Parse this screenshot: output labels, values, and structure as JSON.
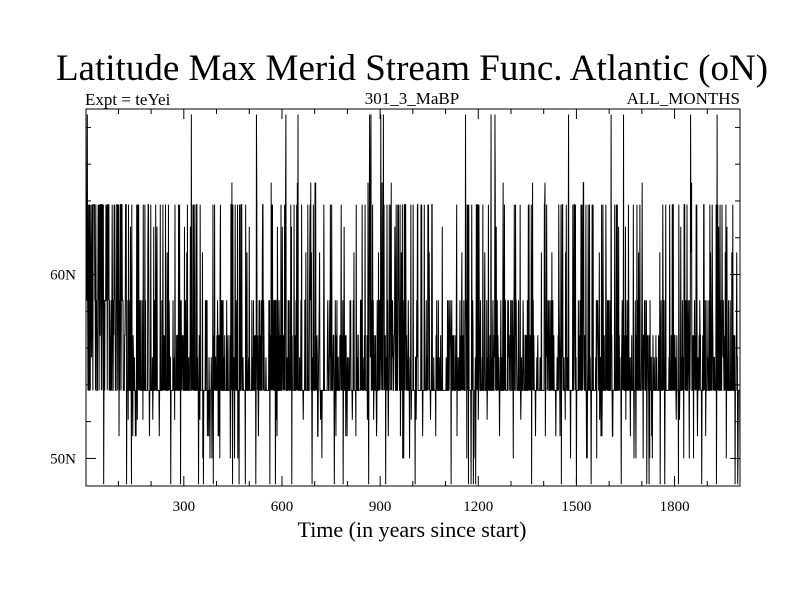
{
  "chart_data": {
    "type": "line",
    "title": "Latitude Max Merid Stream Func. Atlantic (oN)",
    "subtitle_left": "Expt = teYei",
    "subtitle_center": "301_3_MaBP",
    "subtitle_right": "ALL_MONTHS",
    "xlabel": "Time (in years since start)",
    "ylabel": "",
    "xlim": [
      1,
      2000
    ],
    "ylim": [
      48.5,
      69
    ],
    "x_ticks": [
      {
        "value": 300,
        "label": "300"
      },
      {
        "value": 600,
        "label": "600"
      },
      {
        "value": 900,
        "label": "900"
      },
      {
        "value": 1200,
        "label": "1200"
      },
      {
        "value": 1500,
        "label": "1500"
      },
      {
        "value": 1800,
        "label": "1800"
      }
    ],
    "y_ticks": [
      {
        "value": 50,
        "label": "50N"
      },
      {
        "value": 60,
        "label": "60N"
      }
    ],
    "grid": false,
    "series": [
      {
        "baseline_level": 53.7,
        "common_levels": [
          53.7,
          55.5,
          56.7,
          58.6,
          63.8
        ],
        "low_levels": [
          48.6,
          50.0,
          51.2,
          52.1
        ],
        "high_levels": [
          61.2,
          62.6,
          65.0,
          68.7
        ],
        "excursions": [
          {
            "x": 5,
            "y": 68.7
          },
          {
            "x": 12,
            "y": 63.8
          },
          {
            "x": 20,
            "y": 63.8
          },
          {
            "x": 28,
            "y": 58.6
          },
          {
            "x": 40,
            "y": 63.8
          },
          {
            "x": 55,
            "y": 48.6
          },
          {
            "x": 68,
            "y": 63.8
          },
          {
            "x": 82,
            "y": 58.6
          },
          {
            "x": 95,
            "y": 63.8
          },
          {
            "x": 102,
            "y": 51.2
          },
          {
            "x": 110,
            "y": 63.8
          },
          {
            "x": 120,
            "y": 56.7
          },
          {
            "x": 125,
            "y": 48.6
          },
          {
            "x": 140,
            "y": 48.6
          },
          {
            "x": 152,
            "y": 51.2
          },
          {
            "x": 175,
            "y": 52.1
          },
          {
            "x": 190,
            "y": 61.2
          },
          {
            "x": 205,
            "y": 52.1
          },
          {
            "x": 225,
            "y": 51.2
          },
          {
            "x": 255,
            "y": 58.6
          },
          {
            "x": 272,
            "y": 52.1
          },
          {
            "x": 290,
            "y": 48.6
          },
          {
            "x": 305,
            "y": 58.6
          },
          {
            "x": 320,
            "y": 62.6
          },
          {
            "x": 345,
            "y": 48.6
          },
          {
            "x": 360,
            "y": 48.6
          },
          {
            "x": 372,
            "y": 51.2
          },
          {
            "x": 390,
            "y": 48.6
          },
          {
            "x": 405,
            "y": 51.2
          },
          {
            "x": 420,
            "y": 58.6
          },
          {
            "x": 445,
            "y": 63.8
          },
          {
            "x": 455,
            "y": 50.0
          },
          {
            "x": 470,
            "y": 63.8
          },
          {
            "x": 488,
            "y": 48.6
          },
          {
            "x": 500,
            "y": 62.6
          },
          {
            "x": 520,
            "y": 48.6
          },
          {
            "x": 540,
            "y": 61.2
          },
          {
            "x": 560,
            "y": 58.6
          },
          {
            "x": 585,
            "y": 51.2
          },
          {
            "x": 610,
            "y": 61.2
          },
          {
            "x": 630,
            "y": 48.6
          },
          {
            "x": 645,
            "y": 63.8
          },
          {
            "x": 665,
            "y": 52.1
          },
          {
            "x": 685,
            "y": 61.2
          },
          {
            "x": 710,
            "y": 51.2
          },
          {
            "x": 740,
            "y": 58.6
          },
          {
            "x": 765,
            "y": 51.2
          },
          {
            "x": 790,
            "y": 62.6
          },
          {
            "x": 815,
            "y": 52.1
          },
          {
            "x": 840,
            "y": 58.6
          },
          {
            "x": 865,
            "y": 48.6
          },
          {
            "x": 880,
            "y": 52.1
          },
          {
            "x": 895,
            "y": 61.2
          },
          {
            "x": 912,
            "y": 63.8
          },
          {
            "x": 925,
            "y": 51.2
          },
          {
            "x": 945,
            "y": 62.6
          },
          {
            "x": 965,
            "y": 61.2
          },
          {
            "x": 995,
            "y": 52.1
          },
          {
            "x": 1015,
            "y": 63.8
          },
          {
            "x": 1030,
            "y": 51.2
          },
          {
            "x": 1050,
            "y": 61.2
          },
          {
            "x": 1070,
            "y": 51.2
          },
          {
            "x": 1090,
            "y": 62.6
          },
          {
            "x": 1110,
            "y": 58.6
          },
          {
            "x": 1135,
            "y": 51.2
          },
          {
            "x": 1150,
            "y": 61.2
          },
          {
            "x": 1170,
            "y": 48.6
          },
          {
            "x": 1178,
            "y": 48.6
          },
          {
            "x": 1185,
            "y": 48.6
          },
          {
            "x": 1200,
            "y": 52.1
          },
          {
            "x": 1220,
            "y": 61.2
          },
          {
            "x": 1245,
            "y": 58.6
          },
          {
            "x": 1265,
            "y": 51.2
          },
          {
            "x": 1290,
            "y": 58.6
          },
          {
            "x": 1310,
            "y": 63.8
          },
          {
            "x": 1330,
            "y": 52.1
          },
          {
            "x": 1355,
            "y": 63.8
          },
          {
            "x": 1375,
            "y": 51.2
          },
          {
            "x": 1405,
            "y": 51.2
          },
          {
            "x": 1425,
            "y": 61.2
          },
          {
            "x": 1450,
            "y": 51.2
          },
          {
            "x": 1475,
            "y": 61.2
          },
          {
            "x": 1500,
            "y": 48.6
          },
          {
            "x": 1520,
            "y": 61.2
          },
          {
            "x": 1545,
            "y": 48.6
          },
          {
            "x": 1570,
            "y": 61.2
          },
          {
            "x": 1590,
            "y": 63.8
          },
          {
            "x": 1610,
            "y": 51.2
          },
          {
            "x": 1625,
            "y": 63.8
          },
          {
            "x": 1650,
            "y": 62.6
          },
          {
            "x": 1665,
            "y": 51.2
          },
          {
            "x": 1690,
            "y": 61.2
          },
          {
            "x": 1715,
            "y": 48.6
          },
          {
            "x": 1730,
            "y": 51.2
          },
          {
            "x": 1755,
            "y": 61.2
          },
          {
            "x": 1770,
            "y": 48.6
          },
          {
            "x": 1785,
            "y": 63.8
          },
          {
            "x": 1805,
            "y": 52.1
          },
          {
            "x": 1830,
            "y": 63.8
          },
          {
            "x": 1850,
            "y": 61.2
          },
          {
            "x": 1870,
            "y": 51.2
          },
          {
            "x": 1890,
            "y": 63.8
          },
          {
            "x": 1910,
            "y": 61.2
          },
          {
            "x": 1935,
            "y": 62.6
          },
          {
            "x": 1955,
            "y": 61.2
          },
          {
            "x": 1975,
            "y": 61.2
          },
          {
            "x": 1990,
            "y": 61.2
          }
        ]
      }
    ]
  }
}
